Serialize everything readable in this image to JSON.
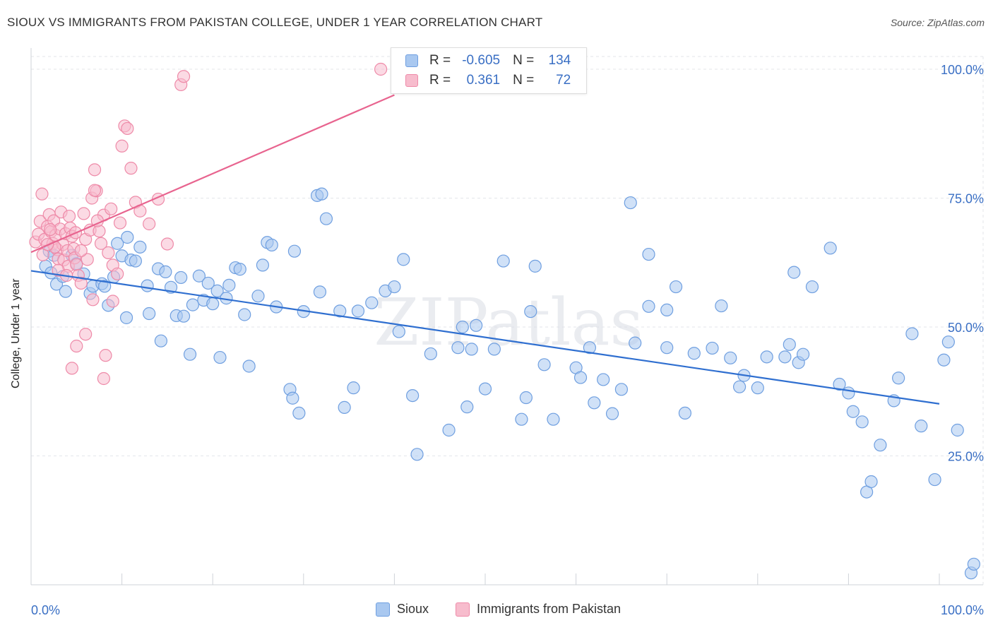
{
  "title": "SIOUX VS IMMIGRANTS FROM PAKISTAN COLLEGE, UNDER 1 YEAR CORRELATION CHART",
  "source": "Source: ZipAtlas.com",
  "watermark": "ZIPatlas",
  "colors": {
    "sioux_fill": "#a9c8f0",
    "sioux_stroke": "#6f9fe0",
    "sioux_line": "#2f6fd0",
    "pak_fill": "#f7bccd",
    "pak_stroke": "#ee8aa8",
    "pak_line": "#e8648f",
    "tick_label": "#3a6fc4"
  },
  "stats": {
    "r_label": "R =",
    "n_label": "N =",
    "rows": [
      {
        "series": "Sioux",
        "r": "-0.605",
        "n": "134"
      },
      {
        "series": "Immigrants from Pakistan",
        "r": "0.361",
        "n": "72"
      }
    ]
  },
  "legend": [
    "Sioux",
    "Immigrants from Pakistan"
  ],
  "chart_data": {
    "type": "scatter",
    "title": "SIOUX VS IMMIGRANTS FROM PAKISTAN COLLEGE, UNDER 1 YEAR CORRELATION CHART",
    "xlabel": "",
    "ylabel": "College, Under 1 year",
    "xlim": [
      0,
      100
    ],
    "ylim": [
      0,
      100
    ],
    "x_tick_labels": [
      "0.0%",
      "100.0%"
    ],
    "y_tick_labels": [
      "25.0%",
      "50.0%",
      "75.0%",
      "100.0%"
    ],
    "y_ticks": [
      25,
      50,
      75,
      100
    ],
    "grid": true,
    "legend_position": "bottom-center",
    "series": [
      {
        "name": "Sioux",
        "trend": {
          "x": [
            0,
            100
          ],
          "y": [
            60.9,
            35.1
          ]
        },
        "points": [
          [
            1.6,
            61.8
          ],
          [
            2.2,
            60.5
          ],
          [
            2.0,
            64.7
          ],
          [
            2.5,
            63.9
          ],
          [
            2.8,
            58.3
          ],
          [
            3.5,
            59.8
          ],
          [
            3.8,
            56.9
          ],
          [
            4.5,
            63.9
          ],
          [
            5.0,
            62.3
          ],
          [
            5.8,
            60.3
          ],
          [
            6.5,
            56.5
          ],
          [
            6.8,
            57.9
          ],
          [
            7.8,
            58.4
          ],
          [
            8.1,
            57.9
          ],
          [
            8.5,
            54.2
          ],
          [
            9.1,
            59.7
          ],
          [
            9.5,
            66.2
          ],
          [
            10.0,
            63.8
          ],
          [
            10.5,
            51.8
          ],
          [
            10.6,
            67.4
          ],
          [
            11.0,
            63.0
          ],
          [
            11.5,
            62.8
          ],
          [
            12.0,
            65.5
          ],
          [
            12.8,
            58.0
          ],
          [
            13.0,
            52.6
          ],
          [
            14.0,
            61.3
          ],
          [
            14.3,
            47.3
          ],
          [
            14.8,
            60.7
          ],
          [
            15.4,
            57.7
          ],
          [
            16.0,
            52.2
          ],
          [
            16.5,
            59.6
          ],
          [
            16.8,
            52.1
          ],
          [
            17.5,
            44.7
          ],
          [
            17.8,
            54.3
          ],
          [
            18.5,
            59.9
          ],
          [
            19.0,
            55.2
          ],
          [
            19.5,
            58.5
          ],
          [
            20.0,
            54.5
          ],
          [
            20.5,
            57.0
          ],
          [
            20.8,
            44.1
          ],
          [
            21.5,
            55.6
          ],
          [
            21.8,
            58.1
          ],
          [
            22.5,
            61.5
          ],
          [
            23.0,
            61.2
          ],
          [
            23.5,
            52.4
          ],
          [
            24.0,
            42.4
          ],
          [
            25.0,
            56.0
          ],
          [
            25.5,
            62.0
          ],
          [
            26.0,
            66.4
          ],
          [
            26.5,
            65.9
          ],
          [
            27.0,
            53.9
          ],
          [
            29.0,
            64.7
          ],
          [
            30.0,
            53.0
          ],
          [
            31.5,
            75.5
          ],
          [
            31.8,
            56.8
          ],
          [
            32.0,
            75.8
          ],
          [
            32.5,
            71.0
          ],
          [
            34.0,
            53.1
          ],
          [
            36.0,
            53.1
          ],
          [
            28.5,
            37.9
          ],
          [
            28.8,
            36.2
          ],
          [
            29.5,
            33.3
          ],
          [
            34.5,
            34.4
          ],
          [
            35.5,
            38.2
          ],
          [
            37.5,
            54.7
          ],
          [
            39.0,
            57.0
          ],
          [
            40.0,
            57.8
          ],
          [
            40.5,
            49.1
          ],
          [
            41.0,
            63.1
          ],
          [
            42.0,
            36.7
          ],
          [
            42.5,
            25.3
          ],
          [
            44.0,
            44.8
          ],
          [
            46.0,
            30.0
          ],
          [
            47.0,
            46.0
          ],
          [
            47.5,
            50.0
          ],
          [
            48.0,
            34.5
          ],
          [
            48.5,
            45.7
          ],
          [
            49.0,
            50.3
          ],
          [
            50.0,
            38.0
          ],
          [
            51.0,
            45.7
          ],
          [
            52.0,
            62.8
          ],
          [
            54.0,
            32.1
          ],
          [
            54.5,
            36.3
          ],
          [
            55.0,
            53.0
          ],
          [
            55.5,
            61.8
          ],
          [
            56.5,
            42.7
          ],
          [
            57.5,
            32.1
          ],
          [
            60.0,
            42.1
          ],
          [
            60.5,
            40.2
          ],
          [
            61.5,
            46.0
          ],
          [
            62.0,
            35.3
          ],
          [
            63.0,
            39.8
          ],
          [
            64.0,
            33.2
          ],
          [
            65.0,
            37.9
          ],
          [
            66.0,
            74.1
          ],
          [
            66.5,
            46.9
          ],
          [
            68.0,
            64.1
          ],
          [
            68.0,
            54.0
          ],
          [
            70.0,
            46.0
          ],
          [
            70.0,
            53.3
          ],
          [
            71.0,
            57.8
          ],
          [
            72.0,
            33.3
          ],
          [
            73.0,
            44.9
          ],
          [
            75.0,
            45.9
          ],
          [
            76.0,
            54.1
          ],
          [
            77.0,
            44.0
          ],
          [
            78.0,
            38.4
          ],
          [
            78.5,
            40.6
          ],
          [
            80.0,
            38.2
          ],
          [
            81.0,
            44.2
          ],
          [
            83.0,
            44.2
          ],
          [
            83.5,
            46.6
          ],
          [
            84.0,
            60.6
          ],
          [
            84.5,
            43.1
          ],
          [
            85.0,
            44.7
          ],
          [
            86.0,
            57.8
          ],
          [
            88.0,
            65.3
          ],
          [
            89.0,
            38.9
          ],
          [
            90.0,
            37.2
          ],
          [
            90.5,
            33.6
          ],
          [
            91.5,
            31.6
          ],
          [
            92.0,
            18.0
          ],
          [
            92.5,
            20.0
          ],
          [
            93.5,
            27.1
          ],
          [
            95.0,
            35.7
          ],
          [
            95.5,
            40.1
          ],
          [
            97.0,
            48.7
          ],
          [
            98.0,
            30.8
          ],
          [
            99.5,
            20.4
          ],
          [
            100.5,
            43.6
          ],
          [
            101.0,
            47.1
          ],
          [
            102.0,
            30.0
          ],
          [
            103.5,
            2.3
          ],
          [
            103.8,
            4.0
          ]
        ]
      },
      {
        "name": "Immigrants from Pakistan",
        "trend": {
          "x": [
            0,
            40
          ],
          "y": [
            64.5,
            95.0
          ]
        },
        "points": [
          [
            0.5,
            66.5
          ],
          [
            0.8,
            68.0
          ],
          [
            1.0,
            70.5
          ],
          [
            1.2,
            75.8
          ],
          [
            1.3,
            64.0
          ],
          [
            1.5,
            67.0
          ],
          [
            1.8,
            69.5
          ],
          [
            2.0,
            71.8
          ],
          [
            2.2,
            68.5
          ],
          [
            2.4,
            66.2
          ],
          [
            2.5,
            70.6
          ],
          [
            2.7,
            67.8
          ],
          [
            2.9,
            65.0
          ],
          [
            3.0,
            63.2
          ],
          [
            3.2,
            69.0
          ],
          [
            3.3,
            72.3
          ],
          [
            3.5,
            66.0
          ],
          [
            3.6,
            63.0
          ],
          [
            3.8,
            68.1
          ],
          [
            4.0,
            64.8
          ],
          [
            4.1,
            61.8
          ],
          [
            4.2,
            71.5
          ],
          [
            4.3,
            69.2
          ],
          [
            4.5,
            67.6
          ],
          [
            4.7,
            65.2
          ],
          [
            4.8,
            63.4
          ],
          [
            5.0,
            62.1
          ],
          [
            5.2,
            60.0
          ],
          [
            5.5,
            58.5
          ],
          [
            5.8,
            72.0
          ],
          [
            6.0,
            67.0
          ],
          [
            6.2,
            63.1
          ],
          [
            6.5,
            68.8
          ],
          [
            6.7,
            75.0
          ],
          [
            7.0,
            80.5
          ],
          [
            7.2,
            76.4
          ],
          [
            7.5,
            68.6
          ],
          [
            7.7,
            66.2
          ],
          [
            8.0,
            71.7
          ],
          [
            8.5,
            64.4
          ],
          [
            9.0,
            62.0
          ],
          [
            9.5,
            60.3
          ],
          [
            10.0,
            85.1
          ],
          [
            10.3,
            89.0
          ],
          [
            10.6,
            88.5
          ],
          [
            11.0,
            80.8
          ],
          [
            11.5,
            74.2
          ],
          [
            12.0,
            72.5
          ],
          [
            13.0,
            70.0
          ],
          [
            14.0,
            74.8
          ],
          [
            15.0,
            66.1
          ],
          [
            16.5,
            97.0
          ],
          [
            16.8,
            98.6
          ],
          [
            7.0,
            76.5
          ],
          [
            6.8,
            55.3
          ],
          [
            6.0,
            48.6
          ],
          [
            5.0,
            46.3
          ],
          [
            4.5,
            42.0
          ],
          [
            8.2,
            44.5
          ],
          [
            8.0,
            40.0
          ],
          [
            9.0,
            55.0
          ],
          [
            3.0,
            61.0
          ],
          [
            2.6,
            65.5
          ],
          [
            3.9,
            60.0
          ],
          [
            5.5,
            64.8
          ],
          [
            1.8,
            66.0
          ],
          [
            2.1,
            68.9
          ],
          [
            4.9,
            68.3
          ],
          [
            7.3,
            70.6
          ],
          [
            38.5,
            100.0
          ],
          [
            9.8,
            70.2
          ],
          [
            8.8,
            72.9
          ]
        ]
      }
    ]
  }
}
